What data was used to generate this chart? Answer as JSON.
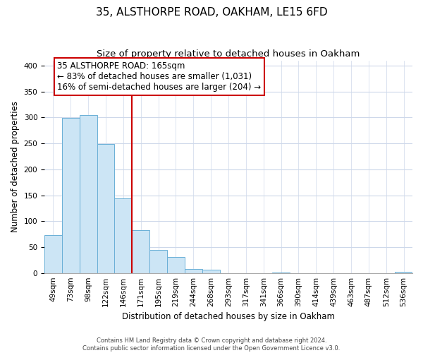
{
  "title": "35, ALSTHORPE ROAD, OAKHAM, LE15 6FD",
  "subtitle": "Size of property relative to detached houses in Oakham",
  "xlabel": "Distribution of detached houses by size in Oakham",
  "ylabel": "Number of detached properties",
  "bar_labels": [
    "49sqm",
    "73sqm",
    "98sqm",
    "122sqm",
    "146sqm",
    "171sqm",
    "195sqm",
    "219sqm",
    "244sqm",
    "268sqm",
    "293sqm",
    "317sqm",
    "341sqm",
    "366sqm",
    "390sqm",
    "414sqm",
    "439sqm",
    "463sqm",
    "487sqm",
    "512sqm",
    "536sqm"
  ],
  "bar_heights": [
    73,
    299,
    304,
    249,
    144,
    83,
    44,
    31,
    8,
    6,
    0,
    0,
    0,
    1,
    0,
    0,
    0,
    0,
    0,
    0,
    2
  ],
  "bar_color": "#cce5f5",
  "bar_edge_color": "#6aafd6",
  "vline_x": 5,
  "vline_color": "#cc0000",
  "annotation_title": "35 ALSTHORPE ROAD: 165sqm",
  "annotation_line1": "← 83% of detached houses are smaller (1,031)",
  "annotation_line2": "16% of semi-detached houses are larger (204) →",
  "ylim": [
    0,
    410
  ],
  "yticks": [
    0,
    50,
    100,
    150,
    200,
    250,
    300,
    350,
    400
  ],
  "footer_line1": "Contains HM Land Registry data © Crown copyright and database right 2024.",
  "footer_line2": "Contains public sector information licensed under the Open Government Licence v3.0.",
  "bg_color": "#ffffff",
  "grid_color": "#cdd8ea",
  "title_fontsize": 11,
  "subtitle_fontsize": 9.5,
  "axis_label_fontsize": 8.5,
  "tick_fontsize": 7.5,
  "annot_fontsize": 8.5,
  "footer_fontsize": 6
}
